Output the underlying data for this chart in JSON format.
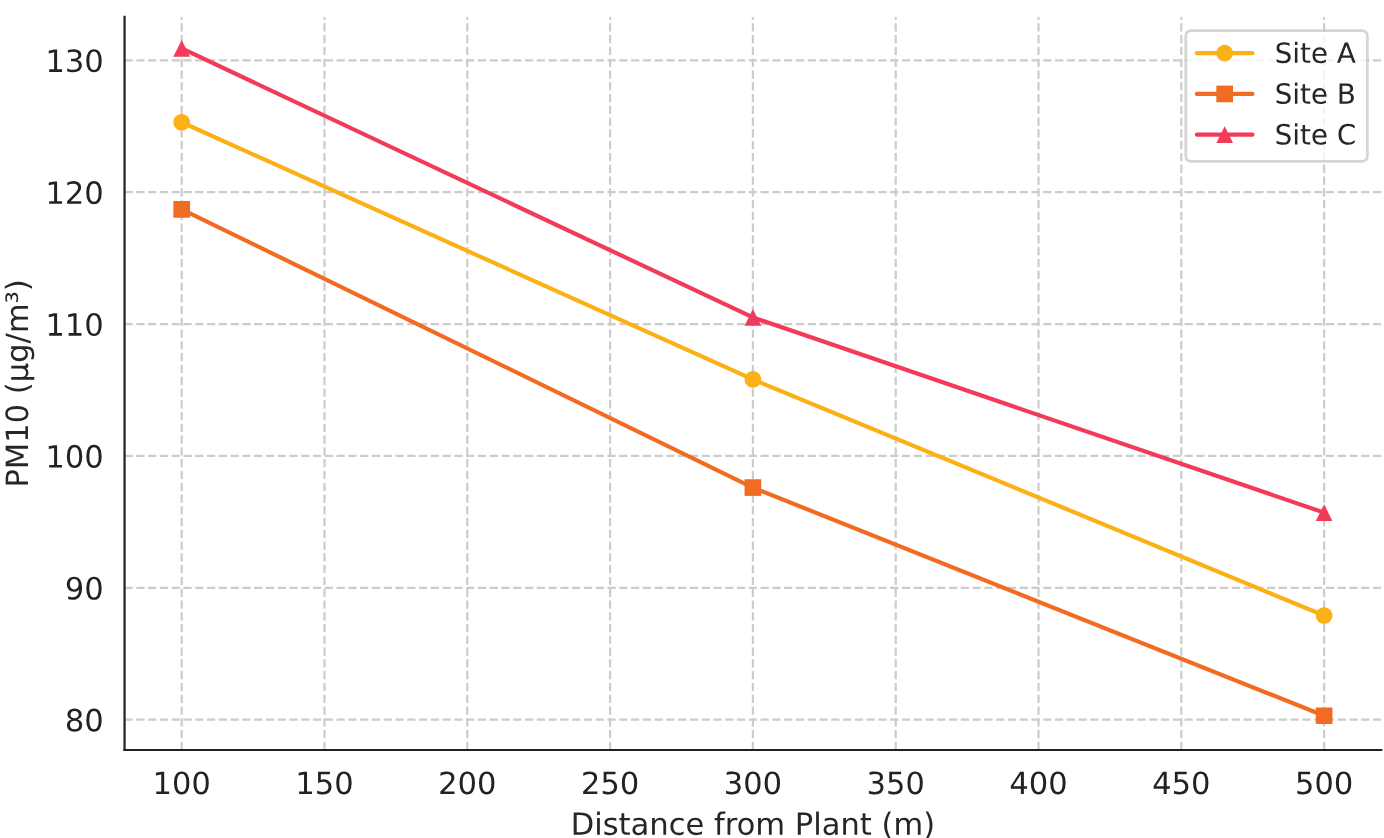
{
  "chart_data": {
    "type": "line",
    "xlabel": "Distance from Plant (m)",
    "ylabel": "PM10 (µg/m³)",
    "x": [
      100,
      300,
      500
    ],
    "series": [
      {
        "name": "Site A",
        "color": "#fbb116",
        "values": [
          125.3,
          105.8,
          87.9
        ],
        "marker": "circle"
      },
      {
        "name": "Site B",
        "color": "#f26b22",
        "values": [
          118.7,
          97.6,
          80.3
        ],
        "marker": "square"
      },
      {
        "name": "Site C",
        "color": "#f23b5a",
        "values": [
          130.9,
          110.5,
          95.7
        ],
        "marker": "triangle"
      }
    ],
    "xlim": [
      80,
      520
    ],
    "xticks": [
      100,
      150,
      200,
      250,
      300,
      350,
      400,
      450,
      500
    ],
    "ylim": [
      77.7,
      133.3
    ],
    "yticks": [
      80,
      90,
      100,
      110,
      120,
      130
    ],
    "grid": true,
    "legend": "top right",
    "line_style": "solid"
  }
}
